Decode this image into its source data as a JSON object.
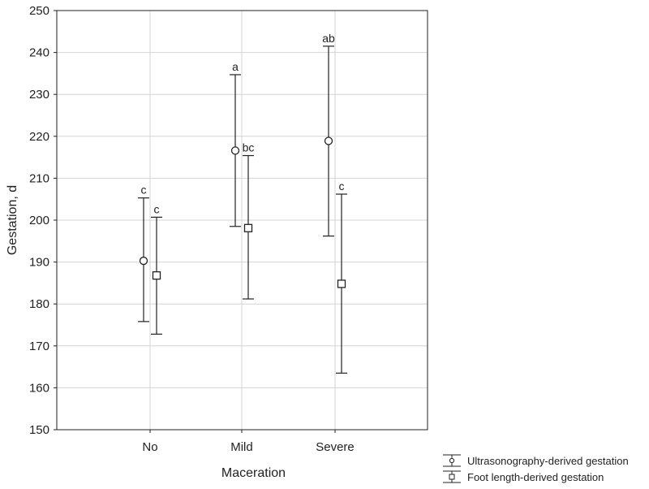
{
  "chart_data": {
    "type": "errorbar",
    "xlabel": "Maceration",
    "ylabel": "Gestation, d",
    "ylim": [
      150,
      250
    ],
    "yticks": [
      "150",
      "160",
      "170",
      "180",
      "190",
      "200",
      "210",
      "220",
      "230",
      "240",
      "250"
    ],
    "categories": [
      "No",
      "Mild",
      "Severe"
    ],
    "grid": true,
    "legend_position": "bottom-right outside",
    "series": [
      {
        "name": "Ultrasonography-derived gestation",
        "marker": "circle",
        "mean": [
          190.3,
          216.6,
          218.9
        ],
        "lower": [
          175.8,
          198.5,
          196.2
        ],
        "upper": [
          205.3,
          234.7,
          241.5
        ],
        "labels": [
          "c",
          "a",
          "ab"
        ]
      },
      {
        "name": "Foot length-derived gestation",
        "marker": "square",
        "mean": [
          186.8,
          198.1,
          184.8
        ],
        "lower": [
          172.8,
          181.2,
          163.5
        ],
        "upper": [
          200.7,
          215.4,
          206.2
        ],
        "labels": [
          "c",
          "bc",
          "c"
        ]
      }
    ]
  }
}
